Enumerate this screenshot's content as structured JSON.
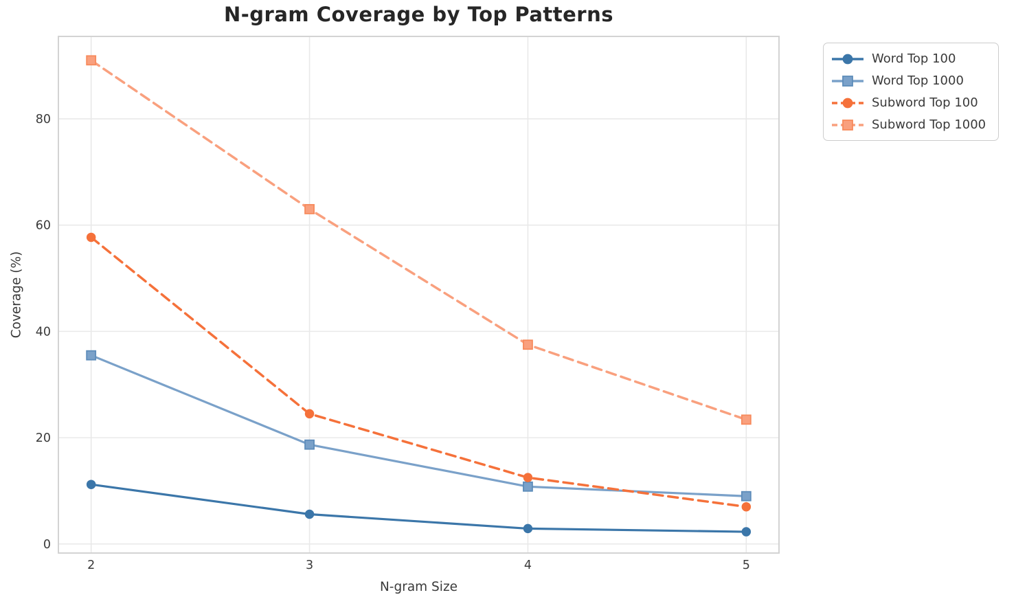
{
  "colors": {
    "background": "#ffffff",
    "grid": "#e9e9e9",
    "spine": "#d3d3d3",
    "tick_text": "#3a3a3a",
    "title_text": "#262626",
    "legend_border": "#cccccc"
  },
  "chart_data": {
    "type": "line",
    "title": "N-gram Coverage by Top Patterns",
    "xlabel": "N-gram Size",
    "ylabel": "Coverage (%)",
    "x": [
      2,
      3,
      4,
      5
    ],
    "x_tick_labels": [
      "2",
      "3",
      "4",
      "5"
    ],
    "y_ticks": [
      0,
      20,
      40,
      60,
      80
    ],
    "y_tick_labels": [
      "0",
      "20",
      "40",
      "60",
      "80"
    ],
    "xlim": [
      1.85,
      5.15
    ],
    "ylim": [
      -1.7,
      95.5
    ],
    "grid": true,
    "legend_position": "outside-upper-right",
    "series": [
      {
        "name": "Word Top 100",
        "values": [
          11.2,
          5.6,
          2.9,
          2.3
        ],
        "color": "#3b76a9",
        "marker_edge": "#3b76a9",
        "line_style": "solid",
        "marker": "circle"
      },
      {
        "name": "Word Top 1000",
        "values": [
          35.5,
          18.7,
          10.8,
          9.0
        ],
        "color": "#7aa1c9",
        "marker_edge": "#5d8cba",
        "line_style": "solid",
        "marker": "square"
      },
      {
        "name": "Subword Top 100",
        "values": [
          57.7,
          24.5,
          12.5,
          7.0
        ],
        "color": "#f5713a",
        "marker_edge": "#f5713a",
        "line_style": "dashed",
        "marker": "circle"
      },
      {
        "name": "Subword Top 1000",
        "values": [
          91.0,
          63.0,
          37.5,
          23.4
        ],
        "color": "#f9a07e",
        "marker_edge": "#f78a5c",
        "line_style": "dashed",
        "marker": "square"
      }
    ]
  }
}
